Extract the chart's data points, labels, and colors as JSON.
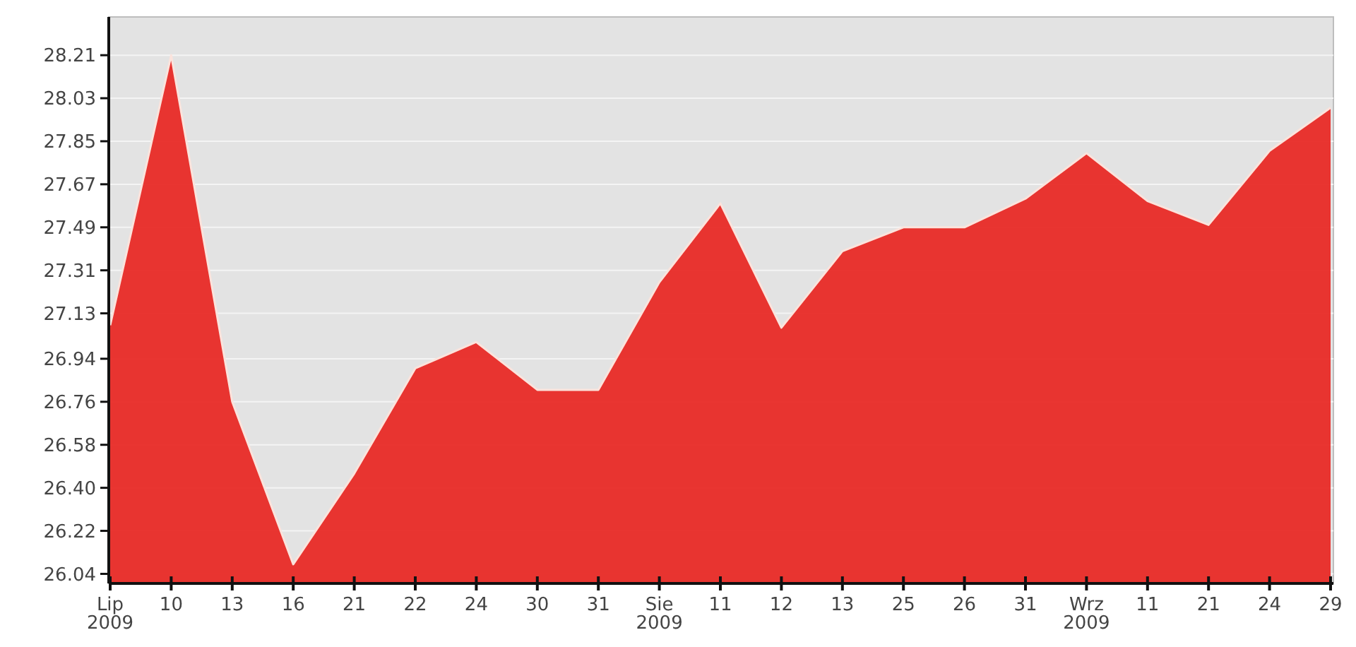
{
  "chart_data": {
    "type": "area",
    "categories": [
      "Lip\n2009",
      "10",
      "13",
      "16",
      "21",
      "22",
      "24",
      "30",
      "31",
      "Sie\n2009",
      "11",
      "12",
      "13",
      "25",
      "26",
      "31",
      "Wrz\n2009",
      "11",
      "21",
      "24",
      "29"
    ],
    "values": [
      27.08,
      28.21,
      26.76,
      26.08,
      26.46,
      26.9,
      27.01,
      26.81,
      26.81,
      27.26,
      27.59,
      27.07,
      27.39,
      27.49,
      27.49,
      27.61,
      27.8,
      27.6,
      27.5,
      27.81,
      27.99
    ],
    "color": "#e8201c",
    "ylim": [
      26.0,
      28.37
    ],
    "yticks": [
      26.04,
      26.22,
      {
        "value": 26.4,
        "label": "26.40"
      },
      26.58,
      26.76,
      26.94,
      27.13,
      27.31,
      27.49,
      27.67,
      27.85,
      28.03,
      28.21
    ],
    "grid": "y"
  }
}
